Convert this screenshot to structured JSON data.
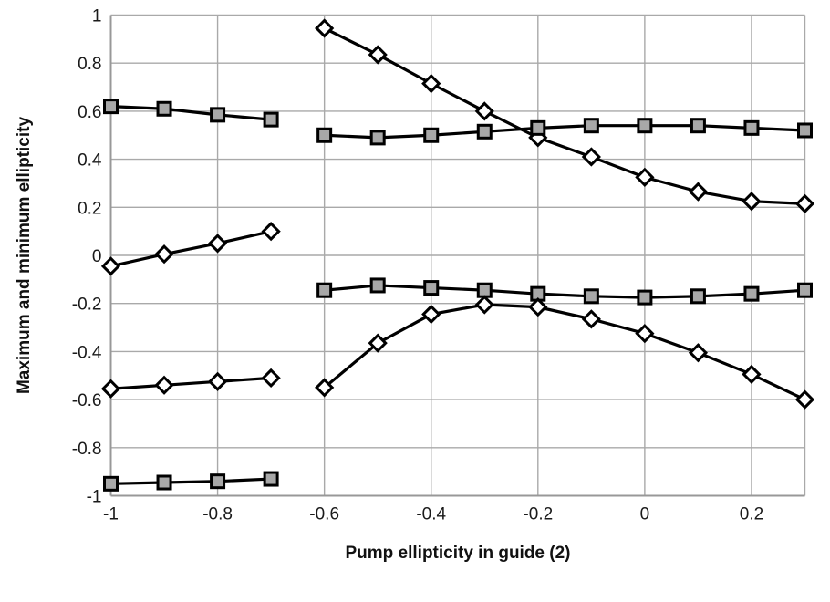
{
  "chart_data": {
    "type": "line",
    "xlabel": "Pump ellipticity in guide (2)",
    "ylabel": "Maximum and minimum ellipticity",
    "xlim": [
      -1,
      0.3
    ],
    "ylim": [
      -1,
      1
    ],
    "x_ticks": [
      "-1",
      "-0.8",
      "-0.6",
      "-0.4",
      "-0.2",
      "0",
      "0.2"
    ],
    "y_ticks": [
      "1",
      "0.8",
      "0.6",
      "0.4",
      "0.2",
      "0",
      "-0.2",
      "-0.4",
      "-0.6",
      "-0.8",
      "-1"
    ],
    "grid": true,
    "legend": "none",
    "style": {
      "line_color": "#000000",
      "square_fill": "#a8a8a8",
      "diamond_fill": "#ffffff",
      "marker_stroke": "#000000",
      "grid_color": "#a9a9a9",
      "axis_color": "#989898",
      "text_color": "#1a1a1a"
    },
    "series": [
      {
        "name": "square-upper-left",
        "marker": "square",
        "x": [
          -1,
          -0.9,
          -0.8,
          -0.7
        ],
        "y": [
          0.62,
          0.61,
          0.585,
          0.565
        ]
      },
      {
        "name": "diamond-mid-left",
        "marker": "diamond",
        "x": [
          -1,
          -0.9,
          -0.8,
          -0.7
        ],
        "y": [
          -0.045,
          0.005,
          0.05,
          0.1
        ]
      },
      {
        "name": "diamond-lower-left",
        "marker": "diamond",
        "x": [
          -1,
          -0.9,
          -0.8,
          -0.7
        ],
        "y": [
          -0.555,
          -0.54,
          -0.525,
          -0.51
        ]
      },
      {
        "name": "square-bottom-left",
        "marker": "square",
        "x": [
          -1,
          -0.9,
          -0.8,
          -0.7
        ],
        "y": [
          -0.95,
          -0.945,
          -0.94,
          -0.93
        ]
      },
      {
        "name": "diamond-upper-right",
        "marker": "diamond",
        "x": [
          -0.6,
          -0.5,
          -0.4,
          -0.3,
          -0.2,
          -0.1,
          0,
          0.1,
          0.2,
          0.3
        ],
        "y": [
          0.945,
          0.835,
          0.715,
          0.6,
          0.49,
          0.41,
          0.325,
          0.265,
          0.225,
          0.215
        ]
      },
      {
        "name": "square-upper-right",
        "marker": "square",
        "x": [
          -0.6,
          -0.5,
          -0.4,
          -0.3,
          -0.2,
          -0.1,
          0,
          0.1,
          0.2,
          0.3
        ],
        "y": [
          0.5,
          0.49,
          0.5,
          0.515,
          0.53,
          0.54,
          0.54,
          0.54,
          0.53,
          0.52
        ]
      },
      {
        "name": "square-mid-right",
        "marker": "square",
        "x": [
          -0.6,
          -0.5,
          -0.4,
          -0.3,
          -0.2,
          -0.1,
          0,
          0.1,
          0.2,
          0.3
        ],
        "y": [
          -0.145,
          -0.125,
          -0.135,
          -0.145,
          -0.16,
          -0.17,
          -0.175,
          -0.17,
          -0.16,
          -0.145
        ]
      },
      {
        "name": "diamond-lower-right",
        "marker": "diamond",
        "x": [
          -0.6,
          -0.5,
          -0.4,
          -0.3,
          -0.2,
          -0.1,
          0,
          0.1,
          0.2,
          0.3
        ],
        "y": [
          -0.55,
          -0.365,
          -0.245,
          -0.205,
          -0.215,
          -0.265,
          -0.325,
          -0.405,
          -0.495,
          -0.6
        ]
      }
    ]
  }
}
